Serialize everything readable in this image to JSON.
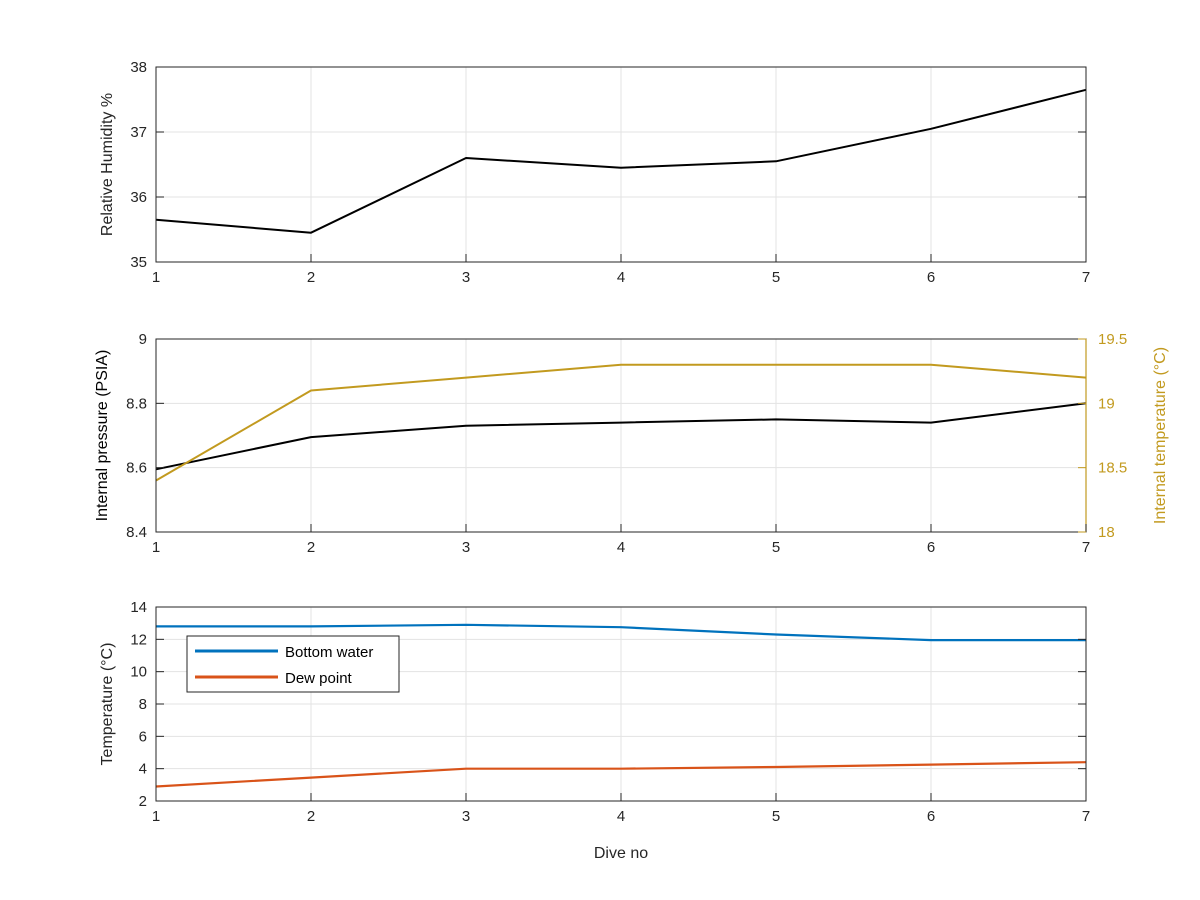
{
  "chart_data": [
    {
      "type": "line",
      "ylabel": "Relative Humidity %",
      "xlim": [
        1,
        7
      ],
      "ylim": [
        35,
        38
      ],
      "x_ticks": [
        "1",
        "2",
        "3",
        "4",
        "5",
        "6",
        "7"
      ],
      "y_ticks": [
        "35",
        "36",
        "37",
        "38"
      ],
      "grid": true,
      "series": [
        {
          "color": "#000000",
          "x": [
            1,
            2,
            3,
            4,
            5,
            6,
            7
          ],
          "values": [
            35.65,
            35.45,
            36.6,
            36.45,
            36.55,
            37.05,
            37.65
          ]
        }
      ]
    },
    {
      "type": "line",
      "ylabel": "Internal pressure (PSIA)",
      "y2label": "Internal temperature (°C)",
      "xlim": [
        1,
        7
      ],
      "ylim": [
        8.4,
        9
      ],
      "y2lim": [
        18,
        19.5
      ],
      "x_ticks": [
        "1",
        "2",
        "3",
        "4",
        "5",
        "6",
        "7"
      ],
      "y_ticks": [
        "8.4",
        "8.6",
        "8.8",
        "9"
      ],
      "y2_ticks": [
        "18",
        "18.5",
        "19",
        "19.5"
      ],
      "grid": true,
      "series": [
        {
          "axis": "left",
          "color": "#000000",
          "x": [
            1,
            2,
            3,
            4,
            5,
            6,
            7
          ],
          "values": [
            8.595,
            8.695,
            8.73,
            8.74,
            8.75,
            8.74,
            8.8
          ]
        },
        {
          "axis": "right",
          "color": "#c29a1f",
          "x": [
            1,
            2,
            3,
            4,
            5,
            6,
            7
          ],
          "values": [
            18.4,
            19.1,
            19.2,
            19.3,
            19.3,
            19.3,
            19.2
          ]
        }
      ]
    },
    {
      "type": "line",
      "xlabel": "Dive no",
      "ylabel": "Temperature (°C)",
      "xlim": [
        1,
        7
      ],
      "ylim": [
        2,
        14
      ],
      "x_ticks": [
        "1",
        "2",
        "3",
        "4",
        "5",
        "6",
        "7"
      ],
      "y_ticks": [
        "2",
        "4",
        "6",
        "8",
        "10",
        "12",
        "14"
      ],
      "grid": true,
      "legend_position": "top-left",
      "series": [
        {
          "name": "Bottom water",
          "color": "#0072bd",
          "x": [
            1,
            2,
            3,
            4,
            5,
            6,
            7
          ],
          "values": [
            12.8,
            12.8,
            12.9,
            12.75,
            12.3,
            11.95,
            11.95
          ]
        },
        {
          "name": "Dew point",
          "color": "#d95319",
          "x": [
            1,
            2,
            3,
            4,
            5,
            6,
            7
          ],
          "values": [
            2.9,
            3.45,
            4.0,
            4.0,
            4.1,
            4.25,
            4.4
          ]
        }
      ]
    }
  ]
}
